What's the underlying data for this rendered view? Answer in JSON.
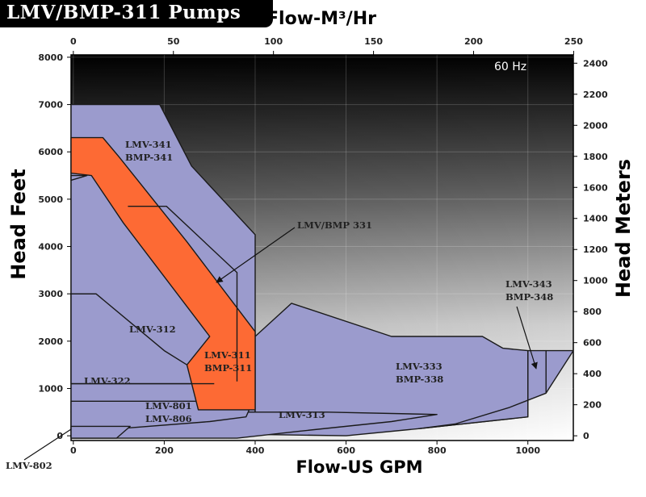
{
  "title": "LMV/BMP-311 Pumps",
  "chart_data": {
    "type": "area",
    "frequency": "60 Hz",
    "x_bottom": {
      "label": "Flow-US GPM",
      "ticks": [
        0,
        200,
        400,
        600,
        800,
        1000
      ],
      "range": [
        -5,
        1100
      ]
    },
    "x_top": {
      "label": "Flow-M³/Hr",
      "ticks": [
        0,
        50,
        100,
        150,
        200,
        250
      ]
    },
    "y_left": {
      "label": "Head Feet",
      "ticks": [
        0,
        1000,
        2000,
        3000,
        4000,
        5000,
        6000,
        7000,
        8000
      ],
      "range": [
        -100,
        8050
      ]
    },
    "y_right": {
      "label": "Head Meters",
      "ticks": [
        0,
        200,
        400,
        600,
        800,
        1000,
        1200,
        1400,
        1600,
        1800,
        2000,
        2200,
        2400
      ]
    },
    "colors": {
      "region": "#9b9bcd",
      "highlight": "#fd6a34",
      "outline": "#1a1a1a"
    },
    "regions": [
      {
        "id": "lmv-341",
        "labels": [
          "LMV-341",
          "BMP-341"
        ],
        "points": [
          [
            -5,
            7000
          ],
          [
            190,
            7000
          ],
          [
            260,
            5700
          ],
          [
            400,
            4250
          ],
          [
            400,
            500
          ],
          [
            -5,
            500
          ]
        ]
      },
      {
        "id": "lmv-333",
        "labels": [
          "LMV-333",
          "BMP-338"
        ],
        "points": [
          [
            400,
            2100
          ],
          [
            480,
            2800
          ],
          [
            700,
            2100
          ],
          [
            900,
            2100
          ],
          [
            945,
            1850
          ],
          [
            1000,
            1800
          ],
          [
            1000,
            400
          ],
          [
            760,
            150
          ],
          [
            600,
            0
          ],
          [
            400,
            30
          ]
        ]
      },
      {
        "id": "lmv-343",
        "labels": [
          "LMV-343",
          "BMP-348"
        ],
        "points": [
          [
            1000,
            1800
          ],
          [
            1100,
            1800
          ],
          [
            1040,
            900
          ],
          [
            960,
            600
          ],
          [
            840,
            250
          ],
          [
            760,
            150
          ],
          [
            1000,
            400
          ]
        ]
      },
      {
        "id": "lmv-313",
        "labels": [
          "LMV-313"
        ],
        "points": [
          [
            -5,
            500
          ],
          [
            400,
            500
          ],
          [
            560,
            500
          ],
          [
            800,
            450
          ],
          [
            700,
            300
          ],
          [
            500,
            100
          ],
          [
            360,
            -50
          ],
          [
            210,
            -50
          ],
          [
            -5,
            -50
          ]
        ]
      },
      {
        "id": "lmv-312",
        "labels": [
          "LMV-312"
        ],
        "points": [
          [
            -5,
            3000
          ],
          [
            50,
            3000
          ],
          [
            200,
            1800
          ],
          [
            250,
            1500
          ],
          [
            310,
            1100
          ],
          [
            -5,
            1100
          ]
        ]
      },
      {
        "id": "lmv-322",
        "labels": [
          "LMV-322"
        ],
        "points": [
          [
            -5,
            5500
          ],
          [
            30,
            5500
          ],
          [
            -5,
            5400
          ]
        ]
      },
      {
        "id": "lmv-801",
        "labels": [
          "LMV-801",
          "LMV-806"
        ],
        "points": [
          [
            -5,
            730
          ],
          [
            395,
            730
          ],
          [
            380,
            400
          ],
          [
            300,
            300
          ],
          [
            100,
            150
          ],
          [
            -5,
            100
          ]
        ]
      },
      {
        "id": "lmv-802",
        "labels": [
          "LMV-802"
        ],
        "points": [
          [
            -5,
            200
          ],
          [
            125,
            200
          ],
          [
            95,
            -50
          ],
          [
            -5,
            -50
          ]
        ]
      },
      {
        "id": "lmv-311",
        "labels": [
          "LMV-311",
          "BMP-311"
        ],
        "highlight": true,
        "points": [
          [
            -5,
            6300
          ],
          [
            65,
            6300
          ],
          [
            100,
            5900
          ],
          [
            250,
            4100
          ],
          [
            400,
            2200
          ],
          [
            400,
            550
          ],
          [
            275,
            550
          ],
          [
            250,
            1500
          ],
          [
            300,
            2100
          ],
          [
            110,
            4500
          ],
          [
            40,
            5500
          ],
          [
            -5,
            5550
          ]
        ]
      }
    ],
    "callouts": [
      {
        "label": "LMV/BMP 331"
      },
      {
        "label": "LMV-343\nBMP-348"
      }
    ],
    "labels": {
      "lmv341": [
        "LMV-341",
        "BMP-341"
      ],
      "lmv331": "LMV/BMP 331",
      "lmv312": "LMV-312",
      "lmv311": [
        "LMV-311",
        "BMP-311"
      ],
      "lmv322": "LMV-322",
      "lmv801": [
        "LMV-801",
        "LMV-806"
      ],
      "lmv313": "LMV-313",
      "lmv333": [
        "LMV-333",
        "BMP-338"
      ],
      "lmv343": [
        "LMV-343",
        "BMP-348"
      ],
      "lmv802": "LMV-802"
    }
  }
}
